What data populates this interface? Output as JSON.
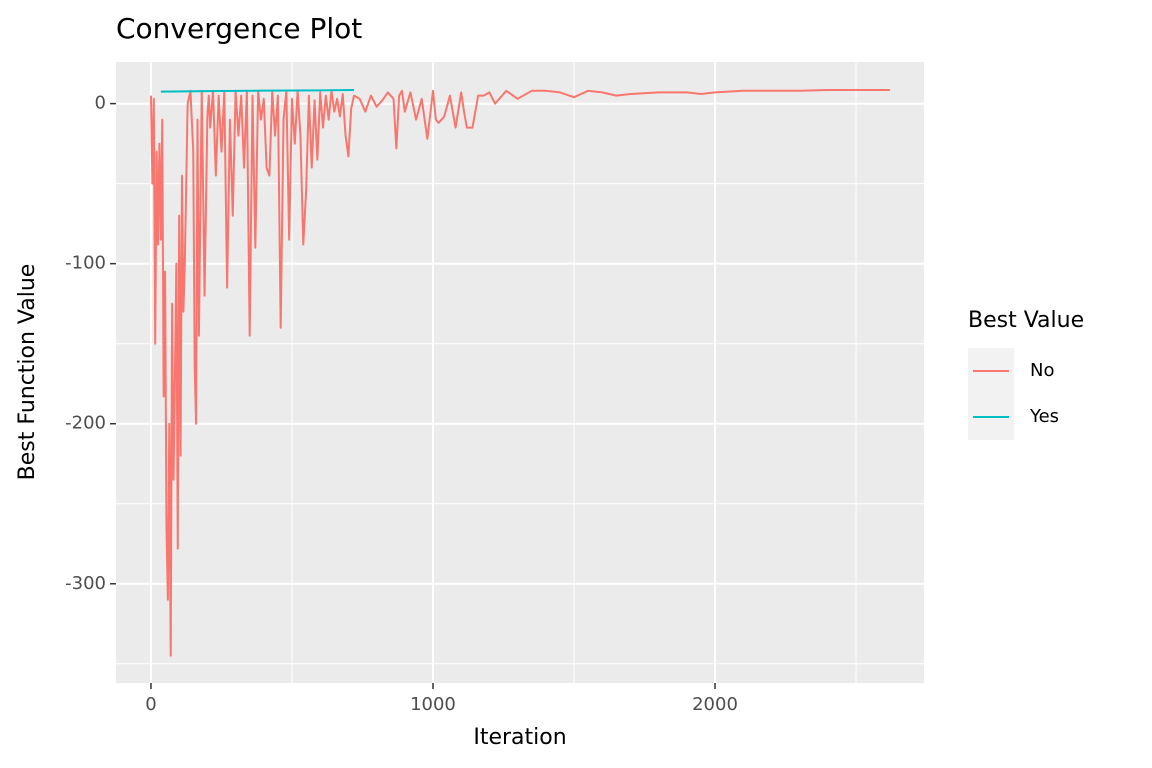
{
  "chart_data": {
    "type": "line",
    "title": "Convergence Plot",
    "x_label": "Iteration",
    "y_label": "Best Function Value",
    "legend_title": "Best Value",
    "legend_position": "right",
    "grid": true,
    "xlim": [
      -124,
      2741
    ],
    "ylim": [
      -362,
      26
    ],
    "xticks": [
      0,
      1000,
      2000
    ],
    "yticks": [
      -300,
      -200,
      -100,
      0
    ],
    "x_minor_ticks": [
      500,
      1500,
      2500
    ],
    "y_minor_ticks": [
      -350,
      -250,
      -150,
      -50
    ],
    "series": [
      {
        "name": "No",
        "color": "#F8766D",
        "x": [
          0,
          5,
          10,
          15,
          20,
          25,
          30,
          35,
          40,
          45,
          50,
          55,
          60,
          65,
          70,
          75,
          80,
          85,
          90,
          95,
          100,
          105,
          110,
          115,
          120,
          130,
          140,
          150,
          155,
          160,
          165,
          170,
          180,
          190,
          200,
          205,
          210,
          220,
          230,
          240,
          250,
          260,
          270,
          280,
          290,
          300,
          310,
          320,
          330,
          340,
          350,
          360,
          370,
          380,
          390,
          400,
          410,
          420,
          430,
          440,
          450,
          460,
          470,
          480,
          490,
          500,
          510,
          520,
          530,
          540,
          550,
          560,
          570,
          580,
          590,
          600,
          610,
          620,
          630,
          640,
          650,
          660,
          670,
          680,
          690,
          700,
          710,
          720,
          740,
          760,
          780,
          800,
          820,
          840,
          860,
          870,
          880,
          890,
          900,
          920,
          940,
          960,
          980,
          1000,
          1010,
          1020,
          1040,
          1060,
          1080,
          1100,
          1110,
          1120,
          1140,
          1160,
          1180,
          1200,
          1220,
          1260,
          1300,
          1350,
          1400,
          1450,
          1500,
          1550,
          1600,
          1650,
          1700,
          1800,
          1900,
          1950,
          2000,
          2100,
          2200,
          2300,
          2400,
          2500,
          2620
        ],
        "values": [
          5,
          -50,
          3,
          -150,
          -30,
          -88,
          -25,
          -85,
          -10,
          -183,
          -105,
          -265,
          -310,
          -200,
          -345,
          -125,
          -235,
          -170,
          -100,
          -278,
          -70,
          -220,
          -45,
          -130,
          -100,
          0,
          8,
          -30,
          -165,
          -200,
          -10,
          -145,
          8,
          -120,
          -8,
          5,
          -15,
          8,
          -45,
          5,
          -30,
          8,
          -115,
          -10,
          -70,
          8,
          -20,
          5,
          -40,
          8,
          -145,
          5,
          -90,
          8,
          -10,
          3,
          -40,
          -45,
          8,
          -20,
          5,
          -140,
          -10,
          8,
          -85,
          3,
          -25,
          8,
          -20,
          -88,
          -55,
          5,
          -40,
          2,
          -35,
          7,
          -15,
          5,
          -10,
          8,
          -5,
          3,
          -8,
          6,
          -20,
          -33,
          -3,
          5,
          3,
          -5,
          5,
          -2,
          2,
          7,
          3,
          -28,
          5,
          8,
          -5,
          7,
          -10,
          3,
          -22,
          8,
          -10,
          -12,
          -8,
          5,
          -15,
          7,
          -5,
          -15,
          -15,
          5,
          5,
          7,
          0,
          8,
          3,
          8,
          8,
          7,
          4,
          8,
          7,
          5,
          6,
          7,
          7,
          6,
          7,
          8,
          8,
          8,
          8.5,
          8.5,
          8.5
        ]
      },
      {
        "name": "Yes",
        "color": "#00BFC4",
        "x": [
          35,
          200,
          400,
          600,
          720
        ],
        "values": [
          7.5,
          7.8,
          8.1,
          8.3,
          8.5
        ]
      }
    ]
  }
}
